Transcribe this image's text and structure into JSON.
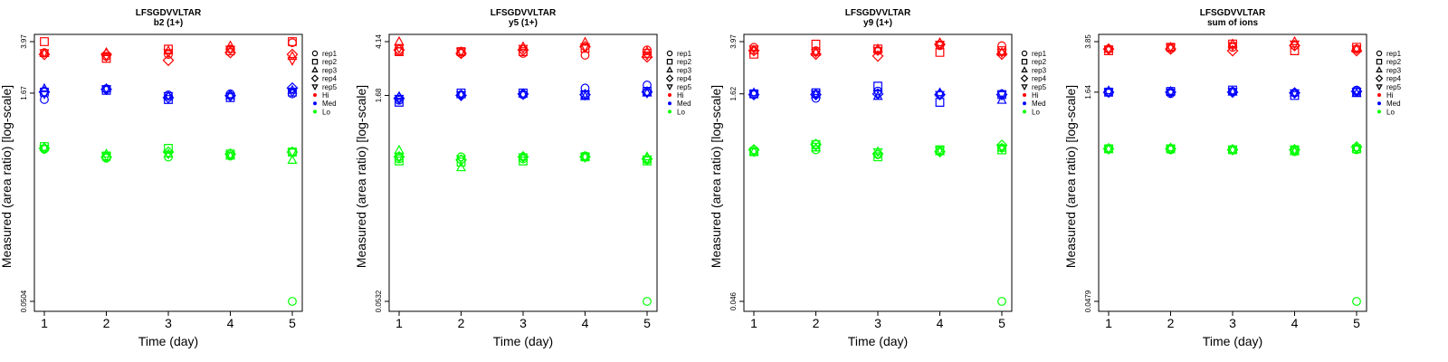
{
  "chart_data": [
    {
      "type": "scatter",
      "title": "LFSGDVVLTAR",
      "subtitle": "b2 (1+)",
      "xlabel": "Time (day)",
      "ylabel": "Measured (area ratio) [log-scale]",
      "y_scale": "log",
      "categories": [
        "1",
        "2",
        "3",
        "4",
        "5"
      ],
      "ylim": [
        0.0504,
        3.97
      ],
      "yticks": [
        "0.0504",
        "1.67",
        "3.97"
      ],
      "legend": "right",
      "series": [
        {
          "name": "Hi",
          "color": "#ff0000",
          "rep_values": [
            [
              3.3,
              3.1,
              3.2,
              3.5,
              3.9
            ],
            [
              3.97,
              3.0,
              3.5,
              3.4,
              3.97
            ],
            [
              3.25,
              3.3,
              3.4,
              3.7,
              3.1
            ],
            [
              3.2,
              3.2,
              2.9,
              3.3,
              3.2
            ],
            [
              3.3,
              3.1,
              3.3,
              3.5,
              2.9
            ]
          ]
        },
        {
          "name": "Med",
          "color": "#0000ff",
          "rep_values": [
            [
              1.5,
              1.8,
              1.62,
              1.65,
              1.65
            ],
            [
              1.7,
              1.75,
              1.5,
              1.55,
              1.7
            ],
            [
              1.8,
              1.8,
              1.58,
              1.6,
              1.75
            ],
            [
              1.7,
              1.78,
              1.55,
              1.6,
              1.82
            ],
            [
              1.65,
              1.8,
              1.6,
              1.58,
              1.7
            ]
          ]
        },
        {
          "name": "Lo",
          "color": "#00ff00",
          "rep_values": [
            [
              0.65,
              0.56,
              0.57,
              0.58,
              0.62
            ],
            [
              0.68,
              0.58,
              0.66,
              0.6,
              0.62
            ],
            [
              0.67,
              0.6,
              0.6,
              0.58,
              0.54
            ],
            [
              0.66,
              0.57,
              0.62,
              0.6,
              0.62
            ],
            [
              0.66,
              0.58,
              0.6,
              0.59,
              0.62
            ]
          ],
          "extra": [
            {
              "x": "5",
              "value": 0.0504
            }
          ]
        }
      ]
    },
    {
      "type": "scatter",
      "title": "LFSGDVVLTAR",
      "subtitle": "y5 (1+)",
      "xlabel": "Time (day)",
      "ylabel": "Measured (area ratio) [log-scale]",
      "y_scale": "log",
      "categories": [
        "1",
        "2",
        "3",
        "4",
        "5"
      ],
      "ylim": [
        0.0532,
        4.14
      ],
      "yticks": [
        "0.0532",
        "1.68",
        "4.14"
      ],
      "legend": "right",
      "series": [
        {
          "name": "Hi",
          "color": "#ff0000",
          "rep_values": [
            [
              3.5,
              3.4,
              3.4,
              3.3,
              3.6
            ],
            [
              3.5,
              3.5,
              3.5,
              3.7,
              3.4
            ],
            [
              4.14,
              3.5,
              3.8,
              4.1,
              3.5
            ],
            [
              3.6,
              3.4,
              3.6,
              3.8,
              3.2
            ],
            [
              3.7,
              3.5,
              3.7,
              3.8,
              3.3
            ]
          ]
        },
        {
          "name": "Med",
          "color": "#0000ff",
          "rep_values": [
            [
              1.55,
              1.7,
              1.7,
              1.9,
              2.0
            ],
            [
              1.5,
              1.75,
              1.75,
              1.7,
              1.8
            ],
            [
              1.65,
              1.7,
              1.72,
              1.65,
              1.75
            ],
            [
              1.6,
              1.68,
              1.72,
              1.7,
              1.78
            ],
            [
              1.6,
              1.7,
              1.7,
              1.72,
              1.75
            ]
          ]
        },
        {
          "name": "Lo",
          "color": "#00ff00",
          "rep_values": [
            [
              0.58,
              0.6,
              0.58,
              0.61,
              0.57
            ],
            [
              0.56,
              0.55,
              0.56,
              0.6,
              0.56
            ],
            [
              0.67,
              0.5,
              0.6,
              0.6,
              0.6
            ],
            [
              0.6,
              0.57,
              0.6,
              0.6,
              0.58
            ],
            [
              0.6,
              0.58,
              0.6,
              0.6,
              0.58
            ]
          ],
          "extra": [
            {
              "x": "5",
              "value": 0.0532
            }
          ]
        }
      ]
    },
    {
      "type": "scatter",
      "title": "LFSGDVVLTAR",
      "subtitle": "y9 (1+)",
      "xlabel": "Time (day)",
      "ylabel": "Measured (area ratio) [log-scale]",
      "y_scale": "log",
      "categories": [
        "1",
        "2",
        "3",
        "4",
        "5"
      ],
      "ylim": [
        0.046,
        3.97
      ],
      "yticks": [
        "0.046",
        "1.62",
        "3.97"
      ],
      "legend": "right",
      "series": [
        {
          "name": "Hi",
          "color": "#ff0000",
          "rep_values": [
            [
              3.6,
              3.4,
              3.4,
              3.7,
              3.7
            ],
            [
              3.2,
              3.8,
              3.5,
              3.3,
              3.4
            ],
            [
              3.4,
              3.3,
              3.5,
              3.9,
              3.3
            ],
            [
              3.4,
              3.2,
              3.1,
              3.8,
              3.2
            ],
            [
              3.5,
              3.3,
              3.4,
              3.8,
              3.3
            ]
          ]
        },
        {
          "name": "Med",
          "color": "#0000ff",
          "rep_values": [
            [
              1.6,
              1.5,
              1.7,
              1.6,
              1.62
            ],
            [
              1.62,
              1.65,
              1.85,
              1.4,
              1.6
            ],
            [
              1.65,
              1.6,
              1.55,
              1.65,
              1.45
            ],
            [
              1.6,
              1.6,
              1.62,
              1.6,
              1.6
            ],
            [
              1.62,
              1.62,
              1.62,
              1.6,
              1.6
            ]
          ]
        },
        {
          "name": "Lo",
          "color": "#00ff00",
          "rep_values": [
            [
              0.62,
              0.62,
              0.57,
              0.6,
              0.64
            ],
            [
              0.6,
              0.68,
              0.55,
              0.62,
              0.62
            ],
            [
              0.6,
              0.64,
              0.6,
              0.6,
              0.64
            ],
            [
              0.62,
              0.68,
              0.58,
              0.6,
              0.67
            ],
            [
              0.6,
              0.66,
              0.6,
              0.62,
              0.64
            ]
          ],
          "extra": [
            {
              "x": "5",
              "value": 0.046
            }
          ]
        }
      ]
    },
    {
      "type": "scatter",
      "title": "LFSGDVVLTAR",
      "subtitle": "sum of ions",
      "xlabel": "Time (day)",
      "ylabel": "Measured (area ratio) [log-scale]",
      "y_scale": "log",
      "categories": [
        "1",
        "2",
        "3",
        "4",
        "5"
      ],
      "ylim": [
        0.0479,
        3.85
      ],
      "yticks": [
        "0.0479",
        "1.64",
        "3.85"
      ],
      "legend": "right",
      "series": [
        {
          "name": "Hi",
          "color": "#ff0000",
          "rep_values": [
            [
              3.4,
              3.4,
              3.5,
              3.6,
              3.4
            ],
            [
              3.3,
              3.5,
              3.7,
              3.3,
              3.5
            ],
            [
              3.4,
              3.5,
              3.7,
              3.85,
              3.4
            ],
            [
              3.4,
              3.4,
              3.3,
              3.6,
              3.3
            ],
            [
              3.4,
              3.5,
              3.6,
              3.7,
              3.4
            ]
          ]
        },
        {
          "name": "Med",
          "color": "#0000ff",
          "rep_values": [
            [
              1.64,
              1.6,
              1.66,
              1.62,
              1.7
            ],
            [
              1.64,
              1.66,
              1.7,
              1.55,
              1.64
            ],
            [
              1.68,
              1.66,
              1.64,
              1.62,
              1.6
            ],
            [
              1.64,
              1.64,
              1.64,
              1.62,
              1.66
            ],
            [
              1.64,
              1.64,
              1.66,
              1.62,
              1.66
            ]
          ]
        },
        {
          "name": "Lo",
          "color": "#00ff00",
          "rep_values": [
            [
              0.63,
              0.62,
              0.62,
              0.6,
              0.62
            ],
            [
              0.63,
              0.63,
              0.62,
              0.62,
              0.63
            ],
            [
              0.63,
              0.64,
              0.62,
              0.6,
              0.64
            ],
            [
              0.63,
              0.63,
              0.62,
              0.62,
              0.65
            ],
            [
              0.63,
              0.63,
              0.62,
              0.62,
              0.63
            ]
          ],
          "extra": [
            {
              "x": "5",
              "value": 0.0479
            }
          ]
        }
      ]
    }
  ],
  "legend_entries": [
    {
      "label": "rep1",
      "kind": "circle"
    },
    {
      "label": "rep2",
      "kind": "square"
    },
    {
      "label": "rep3",
      "kind": "triangle-up"
    },
    {
      "label": "rep4",
      "kind": "diamond"
    },
    {
      "label": "rep5",
      "kind": "triangle-down"
    },
    {
      "label": "Hi",
      "kind": "dot",
      "color": "#ff0000"
    },
    {
      "label": "Med",
      "kind": "dot",
      "color": "#0000ff"
    },
    {
      "label": "Lo",
      "kind": "dot",
      "color": "#00ff00"
    }
  ]
}
